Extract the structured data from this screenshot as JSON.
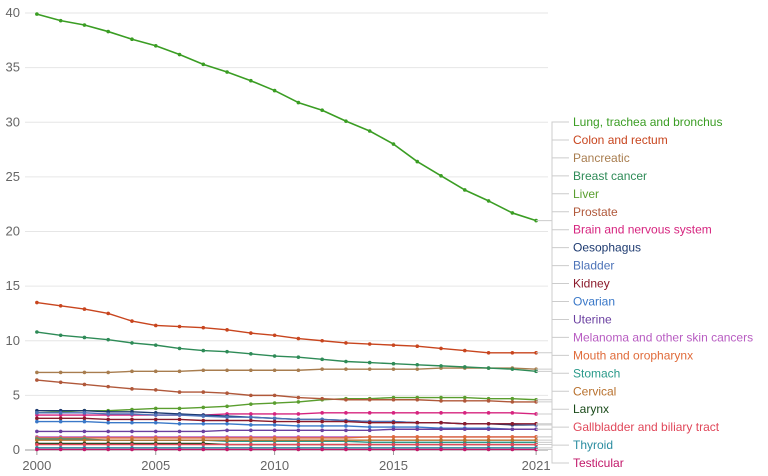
{
  "chart_data": {
    "type": "line",
    "x": [
      2000,
      2001,
      2002,
      2003,
      2004,
      2005,
      2006,
      2007,
      2008,
      2009,
      2010,
      2011,
      2012,
      2013,
      2014,
      2015,
      2016,
      2017,
      2018,
      2019,
      2020,
      2021
    ],
    "ylim": [
      0,
      40
    ],
    "xlim": [
      1999.5,
      2021.5
    ],
    "y_ticks": [
      0,
      5,
      10,
      15,
      20,
      25,
      30,
      35,
      40
    ],
    "x_ticks": [
      {
        "value": 2000,
        "label": "2000"
      },
      {
        "value": 2005,
        "label": "2005"
      },
      {
        "value": 2010,
        "label": "2010"
      },
      {
        "value": 2015,
        "label": "2015"
      },
      {
        "value": 2021,
        "label": "2021"
      }
    ],
    "grid": "horizontal",
    "legend_position": "right",
    "series": [
      {
        "name": "Lung, trachea and bronchus",
        "color": "#3a9d23",
        "values": [
          39.9,
          39.3,
          38.9,
          38.3,
          37.6,
          37.0,
          36.2,
          35.3,
          34.6,
          33.8,
          32.9,
          31.8,
          31.1,
          30.1,
          29.2,
          28.0,
          26.4,
          25.1,
          23.8,
          22.8,
          21.7,
          21.0
        ]
      },
      {
        "name": "Colon and rectum",
        "color": "#c8451e",
        "values": [
          13.5,
          13.2,
          12.9,
          12.5,
          11.8,
          11.4,
          11.3,
          11.2,
          11.0,
          10.7,
          10.5,
          10.2,
          10.0,
          9.8,
          9.7,
          9.6,
          9.5,
          9.3,
          9.1,
          8.9,
          8.9,
          8.9
        ]
      },
      {
        "name": "Pancreatic",
        "color": "#a87d4f",
        "values": [
          7.1,
          7.1,
          7.1,
          7.1,
          7.2,
          7.2,
          7.2,
          7.3,
          7.3,
          7.3,
          7.3,
          7.3,
          7.4,
          7.4,
          7.4,
          7.4,
          7.4,
          7.5,
          7.5,
          7.5,
          7.5,
          7.4
        ]
      },
      {
        "name": "Breast cancer",
        "color": "#2e8b57",
        "values": [
          10.8,
          10.5,
          10.3,
          10.1,
          9.8,
          9.6,
          9.3,
          9.1,
          9.0,
          8.8,
          8.6,
          8.5,
          8.3,
          8.1,
          8.0,
          7.9,
          7.8,
          7.7,
          7.6,
          7.5,
          7.4,
          7.2
        ]
      },
      {
        "name": "Liver",
        "color": "#5a9e2f",
        "values": [
          3.4,
          3.5,
          3.6,
          3.6,
          3.7,
          3.8,
          3.8,
          3.9,
          4.0,
          4.2,
          4.3,
          4.4,
          4.6,
          4.7,
          4.7,
          4.8,
          4.8,
          4.8,
          4.8,
          4.7,
          4.7,
          4.6
        ]
      },
      {
        "name": "Prostate",
        "color": "#b0583a",
        "values": [
          6.4,
          6.2,
          6.0,
          5.8,
          5.6,
          5.5,
          5.3,
          5.3,
          5.2,
          5.0,
          5.0,
          4.8,
          4.7,
          4.6,
          4.6,
          4.6,
          4.6,
          4.5,
          4.5,
          4.5,
          4.4,
          4.4
        ]
      },
      {
        "name": "Brain and nervous system",
        "color": "#d6247f",
        "values": [
          3.2,
          3.2,
          3.2,
          3.2,
          3.2,
          3.2,
          3.2,
          3.2,
          3.3,
          3.3,
          3.3,
          3.3,
          3.4,
          3.4,
          3.4,
          3.4,
          3.4,
          3.4,
          3.4,
          3.4,
          3.4,
          3.3
        ]
      },
      {
        "name": "Oesophagus",
        "color": "#1d3a70",
        "values": [
          3.6,
          3.6,
          3.6,
          3.5,
          3.5,
          3.4,
          3.3,
          3.2,
          3.1,
          3.0,
          2.9,
          2.8,
          2.8,
          2.7,
          2.6,
          2.6,
          2.5,
          2.5,
          2.4,
          2.4,
          2.3,
          2.3
        ]
      },
      {
        "name": "Bladder",
        "color": "#4d73b8",
        "values": [
          3.4,
          3.4,
          3.4,
          3.3,
          3.3,
          3.2,
          3.2,
          3.1,
          3.0,
          3.0,
          2.9,
          2.8,
          2.8,
          2.7,
          2.6,
          2.6,
          2.5,
          2.5,
          2.4,
          2.4,
          2.4,
          2.3
        ]
      },
      {
        "name": "Kidney",
        "color": "#8b1a2b",
        "values": [
          2.9,
          2.9,
          2.9,
          2.8,
          2.8,
          2.8,
          2.8,
          2.7,
          2.7,
          2.7,
          2.6,
          2.6,
          2.6,
          2.6,
          2.5,
          2.5,
          2.5,
          2.5,
          2.4,
          2.4,
          2.4,
          2.4
        ]
      },
      {
        "name": "Ovarian",
        "color": "#3a78c8",
        "values": [
          2.6,
          2.6,
          2.6,
          2.5,
          2.5,
          2.5,
          2.4,
          2.4,
          2.4,
          2.3,
          2.3,
          2.2,
          2.2,
          2.2,
          2.1,
          2.1,
          2.1,
          2.0,
          2.0,
          2.0,
          1.9,
          1.9
        ]
      },
      {
        "name": "Uterine",
        "color": "#6a3fa0",
        "values": [
          1.7,
          1.7,
          1.7,
          1.7,
          1.7,
          1.7,
          1.7,
          1.7,
          1.8,
          1.8,
          1.8,
          1.8,
          1.8,
          1.8,
          1.8,
          1.9,
          1.9,
          1.9,
          1.9,
          1.9,
          1.9,
          1.9
        ]
      },
      {
        "name": "Melanoma and other skin cancers",
        "color": "#b85cc2",
        "values": [
          1.2,
          1.2,
          1.2,
          1.2,
          1.2,
          1.2,
          1.2,
          1.2,
          1.2,
          1.2,
          1.2,
          1.2,
          1.2,
          1.2,
          1.2,
          1.2,
          1.2,
          1.2,
          1.2,
          1.2,
          1.2,
          1.2
        ]
      },
      {
        "name": "Mouth and oropharynx",
        "color": "#e06b3a",
        "values": [
          1.1,
          1.1,
          1.1,
          1.1,
          1.1,
          1.1,
          1.1,
          1.1,
          1.1,
          1.1,
          1.1,
          1.1,
          1.1,
          1.1,
          1.2,
          1.2,
          1.2,
          1.2,
          1.2,
          1.2,
          1.2,
          1.2
        ]
      },
      {
        "name": "Stomach",
        "color": "#2a9a8a",
        "values": [
          1.0,
          1.0,
          1.0,
          0.9,
          0.9,
          0.9,
          0.9,
          0.9,
          0.8,
          0.8,
          0.8,
          0.8,
          0.8,
          0.8,
          0.7,
          0.7,
          0.7,
          0.7,
          0.7,
          0.7,
          0.7,
          0.7
        ]
      },
      {
        "name": "Cervical",
        "color": "#b8712e",
        "values": [
          0.9,
          0.9,
          0.9,
          0.9,
          0.9,
          0.9,
          0.9,
          0.9,
          0.9,
          0.9,
          0.9,
          0.9,
          0.9,
          0.9,
          0.9,
          0.9,
          0.9,
          0.9,
          0.9,
          0.9,
          0.9,
          0.9
        ]
      },
      {
        "name": "Larynx",
        "color": "#1a4a1a",
        "values": [
          0.6,
          0.6,
          0.6,
          0.6,
          0.6,
          0.6,
          0.6,
          0.6,
          0.5,
          0.5,
          0.5,
          0.5,
          0.5,
          0.5,
          0.5,
          0.5,
          0.5,
          0.5,
          0.5,
          0.5,
          0.5,
          0.5
        ]
      },
      {
        "name": "Gallbladder and biliary tract",
        "color": "#e0475a",
        "values": [
          0.5,
          0.5,
          0.5,
          0.5,
          0.5,
          0.5,
          0.5,
          0.5,
          0.5,
          0.5,
          0.5,
          0.5,
          0.5,
          0.5,
          0.5,
          0.5,
          0.5,
          0.5,
          0.5,
          0.5,
          0.5,
          0.5
        ]
      },
      {
        "name": "Thyroid",
        "color": "#2a8ca0",
        "values": [
          0.2,
          0.2,
          0.2,
          0.2,
          0.2,
          0.2,
          0.2,
          0.2,
          0.2,
          0.2,
          0.2,
          0.2,
          0.2,
          0.2,
          0.2,
          0.2,
          0.2,
          0.2,
          0.2,
          0.2,
          0.2,
          0.2
        ]
      },
      {
        "name": "Testicular",
        "color": "#c2186a",
        "values": [
          0.05,
          0.05,
          0.05,
          0.05,
          0.05,
          0.05,
          0.05,
          0.05,
          0.05,
          0.05,
          0.05,
          0.05,
          0.05,
          0.05,
          0.05,
          0.05,
          0.05,
          0.05,
          0.05,
          0.05,
          0.05,
          0.05
        ]
      }
    ]
  }
}
